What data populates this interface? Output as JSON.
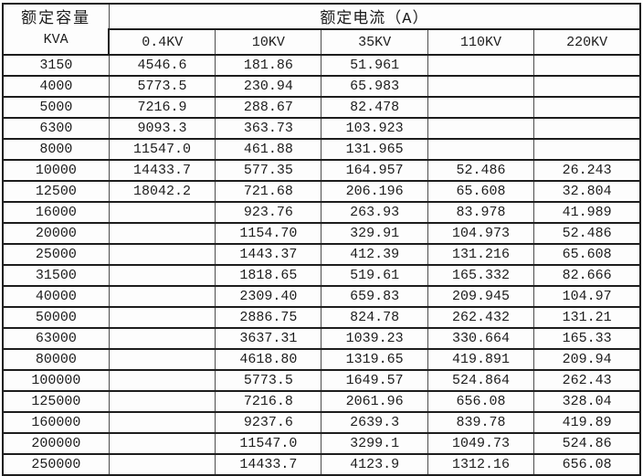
{
  "colors": {
    "border_dark": "#1d1d1d",
    "border_light": "#4d4d4d",
    "background": "#fdfdfd",
    "text": "#1c1c1c"
  },
  "table": {
    "capacity_header": {
      "line1": "额定容量",
      "line2": "KVA"
    },
    "current_header": "额定电流（A）",
    "voltage_columns": [
      "0.4KV",
      "10KV",
      "35KV",
      "110KV",
      "220KV"
    ],
    "rows": [
      [
        "3150",
        "4546.6",
        "181.86",
        "51.961",
        "",
        ""
      ],
      [
        "4000",
        "5773.5",
        "230.94",
        "65.983",
        "",
        ""
      ],
      [
        "5000",
        "7216.9",
        "288.67",
        "82.478",
        "",
        ""
      ],
      [
        "6300",
        "9093.3",
        "363.73",
        "103.923",
        "",
        ""
      ],
      [
        "8000",
        "11547.0",
        "461.88",
        "131.965",
        "",
        ""
      ],
      [
        "10000",
        "14433.7",
        "577.35",
        "164.957",
        "52.486",
        "26.243"
      ],
      [
        "12500",
        "18042.2",
        "721.68",
        "206.196",
        "65.608",
        "32.804"
      ],
      [
        "16000",
        "",
        "923.76",
        "263.93",
        "83.978",
        "41.989"
      ],
      [
        "20000",
        "",
        "1154.70",
        "329.91",
        "104.973",
        "52.486"
      ],
      [
        "25000",
        "",
        "1443.37",
        "412.39",
        "131.216",
        "65.608"
      ],
      [
        "31500",
        "",
        "1818.65",
        "519.61",
        "165.332",
        "82.666"
      ],
      [
        "40000",
        "",
        "2309.40",
        "659.83",
        "209.945",
        "104.97"
      ],
      [
        "50000",
        "",
        "2886.75",
        "824.78",
        "262.432",
        "131.21"
      ],
      [
        "63000",
        "",
        "3637.31",
        "1039.23",
        "330.664",
        "165.33"
      ],
      [
        "80000",
        "",
        "4618.80",
        "1319.65",
        "419.891",
        "209.94"
      ],
      [
        "100000",
        "",
        "5773.5",
        "1649.57",
        "524.864",
        "262.43"
      ],
      [
        "125000",
        "",
        "7216.8",
        "2061.96",
        "656.08",
        "328.04"
      ],
      [
        "160000",
        "",
        "9237.6",
        "2639.3",
        "839.78",
        "419.89"
      ],
      [
        "200000",
        "",
        "11547.0",
        "3299.1",
        "1049.73",
        "524.86"
      ],
      [
        "250000",
        "",
        "14433.7",
        "4123.9",
        "1312.16",
        "656.08"
      ]
    ]
  }
}
